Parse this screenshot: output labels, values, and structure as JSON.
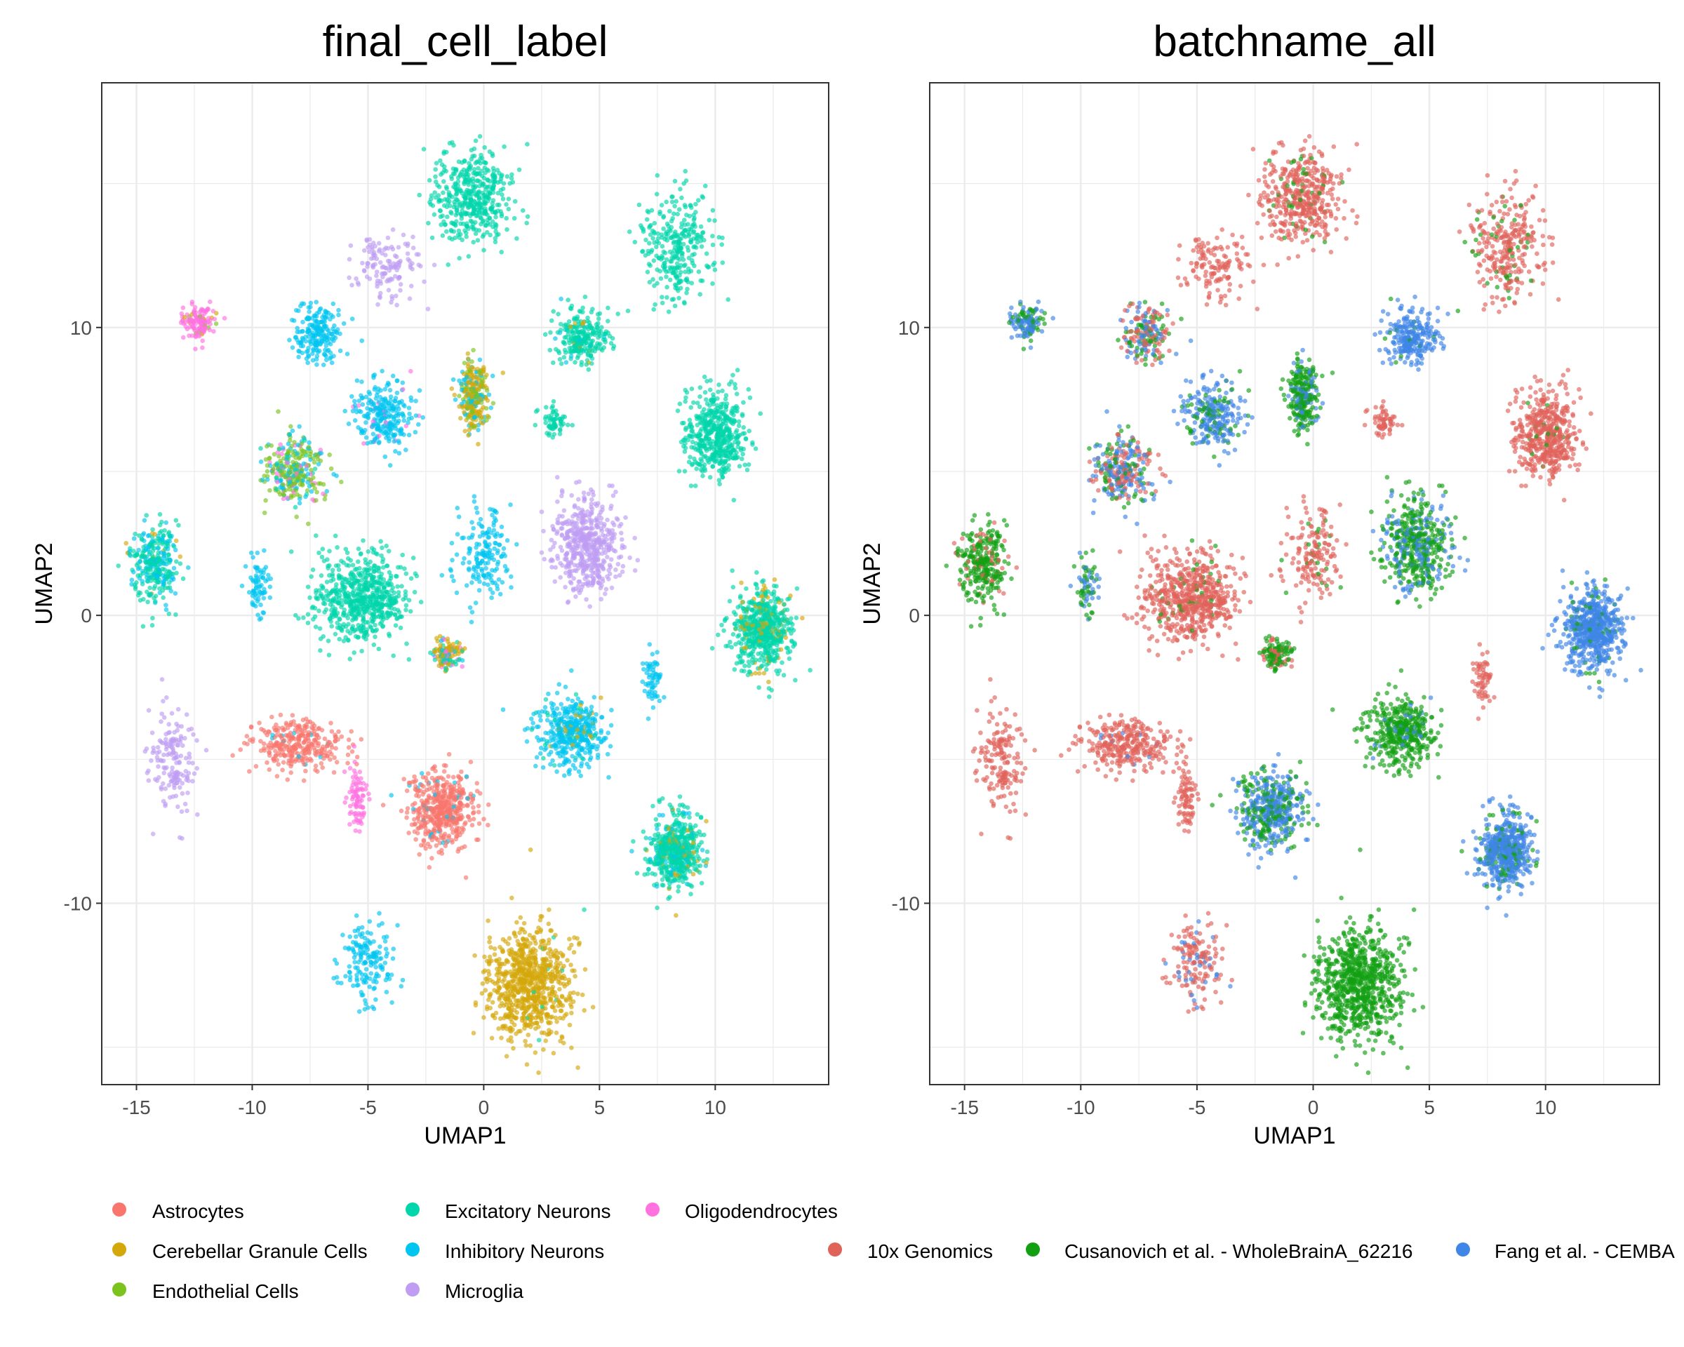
{
  "chart_data": [
    {
      "type": "scatter",
      "title": "final_cell_label",
      "xlabel": "UMAP1",
      "ylabel": "UMAP2",
      "xlim": [
        -16.5,
        14.9
      ],
      "ylim": [
        -16.3,
        18.5
      ],
      "xticks": [
        -15,
        -10,
        -5,
        0,
        5,
        10
      ],
      "xtick_labels": [
        "-15",
        "-10",
        "-5",
        "0",
        "5",
        "10"
      ],
      "yticks": [
        -10,
        0,
        10
      ],
      "ytick_labels": [
        "-10",
        "0",
        "10"
      ],
      "grid": true,
      "legend_position": "bottom",
      "legend": [
        {
          "label": "Astrocytes",
          "color": "#F8766D"
        },
        {
          "label": "Cerebellar Granule Cells",
          "color": "#D4A80A"
        },
        {
          "label": "Endothelial Cells",
          "color": "#7CC31E"
        },
        {
          "label": "Excitatory Neurons",
          "color": "#00D6AA"
        },
        {
          "label": "Inhibitory Neurons",
          "color": "#00C5F0"
        },
        {
          "label": "Microglia",
          "color": "#BE9DF2"
        },
        {
          "label": "Oligodendrocytes",
          "color": "#FF72E0"
        }
      ],
      "clusters": [
        {
          "x": -0.5,
          "y": 14.5,
          "spread": [
            1.6,
            1.4
          ],
          "n": 440,
          "mix": {
            "Excitatory Neurons": 1
          }
        },
        {
          "x": 8.3,
          "y": 12.8,
          "spread": [
            1.4,
            1.6
          ],
          "n": 300,
          "mix": {
            "Excitatory Neurons": 1
          }
        },
        {
          "x": -4.2,
          "y": 12.2,
          "spread": [
            1.2,
            1.2
          ],
          "n": 130,
          "mix": {
            "Microglia": 1
          }
        },
        {
          "x": -12.3,
          "y": 10.2,
          "spread": [
            0.6,
            0.6
          ],
          "n": 130,
          "mix": {
            "Oligodendrocytes": 0.85,
            "Cerebellar Granule Cells": 0.1,
            "Endothelial Cells": 0.05
          }
        },
        {
          "x": -7.2,
          "y": 9.8,
          "spread": [
            0.9,
            0.9
          ],
          "n": 200,
          "mix": {
            "Inhibitory Neurons": 1
          }
        },
        {
          "x": 4.3,
          "y": 9.7,
          "spread": [
            1.0,
            0.8
          ],
          "n": 260,
          "mix": {
            "Excitatory Neurons": 0.9,
            "Cerebellar Granule Cells": 0.05,
            "Inhibitory Neurons": 0.05
          }
        },
        {
          "x": -0.4,
          "y": 7.6,
          "spread": [
            0.6,
            1.0
          ],
          "n": 280,
          "mix": {
            "Cerebellar Granule Cells": 0.5,
            "Inhibitory Neurons": 0.3,
            "Endothelial Cells": 0.2
          }
        },
        {
          "x": 3.0,
          "y": 6.7,
          "spread": [
            0.6,
            0.5
          ],
          "n": 60,
          "mix": {
            "Excitatory Neurons": 1
          }
        },
        {
          "x": -4.3,
          "y": 7.0,
          "spread": [
            1.2,
            1.0
          ],
          "n": 260,
          "mix": {
            "Inhibitory Neurons": 0.93,
            "Oligodendrocytes": 0.07
          }
        },
        {
          "x": 10.0,
          "y": 6.3,
          "spread": [
            1.2,
            1.4
          ],
          "n": 480,
          "mix": {
            "Excitatory Neurons": 1
          }
        },
        {
          "x": -8.2,
          "y": 5.0,
          "spread": [
            1.1,
            1.1
          ],
          "n": 300,
          "mix": {
            "Endothelial Cells": 0.6,
            "Inhibitory Neurons": 0.25,
            "Oligodendrocytes": 0.1,
            "Excitatory Neurons": 0.05
          }
        },
        {
          "x": 4.5,
          "y": 2.5,
          "spread": [
            1.3,
            1.5
          ],
          "n": 500,
          "mix": {
            "Microglia": 1
          }
        },
        {
          "x": 0.0,
          "y": 2.0,
          "spread": [
            1.0,
            1.3
          ],
          "n": 170,
          "mix": {
            "Inhibitory Neurons": 1
          }
        },
        {
          "x": -14.2,
          "y": 1.8,
          "spread": [
            0.9,
            1.2
          ],
          "n": 300,
          "mix": {
            "Excitatory Neurons": 0.65,
            "Inhibitory Neurons": 0.3,
            "Cerebellar Granule Cells": 0.05
          }
        },
        {
          "x": -9.7,
          "y": 1.0,
          "spread": [
            0.5,
            0.9
          ],
          "n": 70,
          "mix": {
            "Inhibitory Neurons": 1
          }
        },
        {
          "x": -5.3,
          "y": 0.6,
          "spread": [
            1.7,
            1.3
          ],
          "n": 620,
          "mix": {
            "Excitatory Neurons": 1
          }
        },
        {
          "x": 12.0,
          "y": -0.5,
          "spread": [
            1.2,
            1.3
          ],
          "n": 620,
          "mix": {
            "Excitatory Neurons": 0.88,
            "Cerebellar Granule Cells": 0.12
          }
        },
        {
          "x": -1.6,
          "y": -1.4,
          "spread": [
            0.6,
            0.5
          ],
          "n": 140,
          "mix": {
            "Cerebellar Granule Cells": 0.5,
            "Excitatory Neurons": 0.25,
            "Oligodendrocytes": 0.15,
            "Inhibitory Neurons": 0.1
          }
        },
        {
          "x": 7.3,
          "y": -2.2,
          "spread": [
            0.4,
            0.9
          ],
          "n": 60,
          "mix": {
            "Inhibitory Neurons": 1
          }
        },
        {
          "x": 3.8,
          "y": -4.0,
          "spread": [
            1.3,
            1.1
          ],
          "n": 420,
          "mix": {
            "Inhibitory Neurons": 0.9,
            "Excitatory Neurons": 0.05,
            "Cerebellar Granule Cells": 0.05
          }
        },
        {
          "x": -13.4,
          "y": -5.0,
          "spread": [
            0.9,
            1.6
          ],
          "n": 160,
          "mix": {
            "Microglia": 1
          }
        },
        {
          "x": -8.0,
          "y": -4.5,
          "spread": [
            1.6,
            0.8
          ],
          "n": 300,
          "mix": {
            "Astrocytes": 0.97,
            "Inhibitory Neurons": 0.03
          }
        },
        {
          "x": -5.5,
          "y": -6.4,
          "spread": [
            0.4,
            1.1
          ],
          "n": 80,
          "mix": {
            "Oligodendrocytes": 1
          }
        },
        {
          "x": -1.8,
          "y": -6.8,
          "spread": [
            1.2,
            1.2
          ],
          "n": 480,
          "mix": {
            "Astrocytes": 0.94,
            "Inhibitory Neurons": 0.06
          }
        },
        {
          "x": 8.3,
          "y": -8.2,
          "spread": [
            1.0,
            1.2
          ],
          "n": 560,
          "mix": {
            "Excitatory Neurons": 0.75,
            "Cerebellar Granule Cells": 0.1,
            "Inhibitory Neurons": 0.15
          }
        },
        {
          "x": -5.0,
          "y": -12.0,
          "spread": [
            1.0,
            1.3
          ],
          "n": 160,
          "mix": {
            "Inhibitory Neurons": 1
          }
        },
        {
          "x": 2.0,
          "y": -12.8,
          "spread": [
            1.6,
            1.7
          ],
          "n": 780,
          "mix": {
            "Cerebellar Granule Cells": 0.98,
            "Excitatory Neurons": 0.02
          }
        }
      ]
    },
    {
      "type": "scatter",
      "title": "batchname_all",
      "xlabel": "UMAP1",
      "ylabel": "UMAP2",
      "xlim": [
        -16.5,
        14.9
      ],
      "ylim": [
        -16.3,
        18.5
      ],
      "xticks": [
        -15,
        -10,
        -5,
        0,
        5,
        10
      ],
      "xtick_labels": [
        "-15",
        "-10",
        "-5",
        "0",
        "5",
        "10"
      ],
      "yticks": [
        -10,
        0,
        10
      ],
      "ytick_labels": [
        "-10",
        "0",
        "10"
      ],
      "grid": true,
      "legend_position": "bottom",
      "legend": [
        {
          "label": "10x Genomics",
          "color": "#E0635A"
        },
        {
          "label": "Cusanovich et al. - WholeBrainA_62216",
          "color": "#12A012"
        },
        {
          "label": "Fang et al. - CEMBA",
          "color": "#3F86E6"
        }
      ],
      "clusters": [
        {
          "x": -0.5,
          "y": 14.5,
          "spread": [
            1.6,
            1.4
          ],
          "n": 440,
          "mix": {
            "10x Genomics": 0.92,
            "Cusanovich et al. - WholeBrainA_62216": 0.08
          }
        },
        {
          "x": 8.3,
          "y": 12.8,
          "spread": [
            1.4,
            1.6
          ],
          "n": 300,
          "mix": {
            "10x Genomics": 0.9,
            "Cusanovich et al. - WholeBrainA_62216": 0.1
          }
        },
        {
          "x": -4.2,
          "y": 12.2,
          "spread": [
            1.2,
            1.2
          ],
          "n": 130,
          "mix": {
            "10x Genomics": 1
          }
        },
        {
          "x": -12.3,
          "y": 10.2,
          "spread": [
            0.6,
            0.6
          ],
          "n": 130,
          "mix": {
            "Fang et al. - CEMBA": 0.65,
            "Cusanovich et al. - WholeBrainA_62216": 0.35
          }
        },
        {
          "x": -7.2,
          "y": 9.8,
          "spread": [
            0.9,
            0.9
          ],
          "n": 200,
          "mix": {
            "10x Genomics": 0.45,
            "Fang et al. - CEMBA": 0.3,
            "Cusanovich et al. - WholeBrainA_62216": 0.25
          }
        },
        {
          "x": 4.3,
          "y": 9.7,
          "spread": [
            1.0,
            0.8
          ],
          "n": 260,
          "mix": {
            "Fang et al. - CEMBA": 0.95,
            "Cusanovich et al. - WholeBrainA_62216": 0.05
          }
        },
        {
          "x": -0.4,
          "y": 7.6,
          "spread": [
            0.6,
            1.0
          ],
          "n": 280,
          "mix": {
            "Cusanovich et al. - WholeBrainA_62216": 0.75,
            "Fang et al. - CEMBA": 0.25
          }
        },
        {
          "x": 3.0,
          "y": 6.7,
          "spread": [
            0.6,
            0.5
          ],
          "n": 60,
          "mix": {
            "10x Genomics": 1
          }
        },
        {
          "x": -4.3,
          "y": 7.0,
          "spread": [
            1.2,
            1.0
          ],
          "n": 260,
          "mix": {
            "Fang et al. - CEMBA": 0.7,
            "Cusanovich et al. - WholeBrainA_62216": 0.3
          }
        },
        {
          "x": 10.0,
          "y": 6.3,
          "spread": [
            1.2,
            1.4
          ],
          "n": 480,
          "mix": {
            "10x Genomics": 0.97,
            "Cusanovich et al. - WholeBrainA_62216": 0.03
          }
        },
        {
          "x": -8.2,
          "y": 5.0,
          "spread": [
            1.1,
            1.1
          ],
          "n": 300,
          "mix": {
            "Fang et al. - CEMBA": 0.45,
            "10x Genomics": 0.35,
            "Cusanovich et al. - WholeBrainA_62216": 0.2
          }
        },
        {
          "x": 4.5,
          "y": 2.5,
          "spread": [
            1.3,
            1.5
          ],
          "n": 500,
          "mix": {
            "Cusanovich et al. - WholeBrainA_62216": 0.65,
            "Fang et al. - CEMBA": 0.35
          }
        },
        {
          "x": 0.0,
          "y": 2.0,
          "spread": [
            1.0,
            1.3
          ],
          "n": 170,
          "mix": {
            "10x Genomics": 0.85,
            "Cusanovich et al. - WholeBrainA_62216": 0.15
          }
        },
        {
          "x": -14.2,
          "y": 1.8,
          "spread": [
            0.9,
            1.2
          ],
          "n": 300,
          "mix": {
            "Cusanovich et al. - WholeBrainA_62216": 0.85,
            "10x Genomics": 0.15
          }
        },
        {
          "x": -9.7,
          "y": 1.0,
          "spread": [
            0.5,
            0.9
          ],
          "n": 70,
          "mix": {
            "Fang et al. - CEMBA": 0.5,
            "Cusanovich et al. - WholeBrainA_62216": 0.5
          }
        },
        {
          "x": -5.3,
          "y": 0.6,
          "spread": [
            1.7,
            1.3
          ],
          "n": 620,
          "mix": {
            "10x Genomics": 0.95,
            "Cusanovich et al. - WholeBrainA_62216": 0.05
          }
        },
        {
          "x": 12.0,
          "y": -0.5,
          "spread": [
            1.2,
            1.3
          ],
          "n": 620,
          "mix": {
            "Fang et al. - CEMBA": 0.93,
            "Cusanovich et al. - WholeBrainA_62216": 0.07
          }
        },
        {
          "x": -1.6,
          "y": -1.4,
          "spread": [
            0.6,
            0.5
          ],
          "n": 140,
          "mix": {
            "Cusanovich et al. - WholeBrainA_62216": 0.7,
            "10x Genomics": 0.3
          }
        },
        {
          "x": 7.3,
          "y": -2.2,
          "spread": [
            0.4,
            0.9
          ],
          "n": 60,
          "mix": {
            "10x Genomics": 1
          }
        },
        {
          "x": 3.8,
          "y": -4.0,
          "spread": [
            1.3,
            1.1
          ],
          "n": 420,
          "mix": {
            "Cusanovich et al. - WholeBrainA_62216": 0.93,
            "Fang et al. - CEMBA": 0.07
          }
        },
        {
          "x": -13.4,
          "y": -5.0,
          "spread": [
            0.9,
            1.6
          ],
          "n": 160,
          "mix": {
            "10x Genomics": 1
          }
        },
        {
          "x": -8.0,
          "y": -4.5,
          "spread": [
            1.6,
            0.8
          ],
          "n": 300,
          "mix": {
            "10x Genomics": 0.97,
            "Fang et al. - CEMBA": 0.03
          }
        },
        {
          "x": -5.5,
          "y": -6.4,
          "spread": [
            0.4,
            1.1
          ],
          "n": 80,
          "mix": {
            "10x Genomics": 1
          }
        },
        {
          "x": -1.8,
          "y": -6.8,
          "spread": [
            1.2,
            1.2
          ],
          "n": 480,
          "mix": {
            "Fang et al. - CEMBA": 0.6,
            "Cusanovich et al. - WholeBrainA_62216": 0.4
          }
        },
        {
          "x": 8.3,
          "y": -8.2,
          "spread": [
            1.0,
            1.2
          ],
          "n": 560,
          "mix": {
            "Fang et al. - CEMBA": 0.8,
            "Cusanovich et al. - WholeBrainA_62216": 0.2
          }
        },
        {
          "x": -5.0,
          "y": -12.0,
          "spread": [
            1.0,
            1.3
          ],
          "n": 160,
          "mix": {
            "10x Genomics": 0.8,
            "Fang et al. - CEMBA": 0.2
          }
        },
        {
          "x": 2.0,
          "y": -12.8,
          "spread": [
            1.6,
            1.7
          ],
          "n": 780,
          "mix": {
            "Cusanovich et al. - WholeBrainA_62216": 1
          }
        }
      ]
    }
  ]
}
